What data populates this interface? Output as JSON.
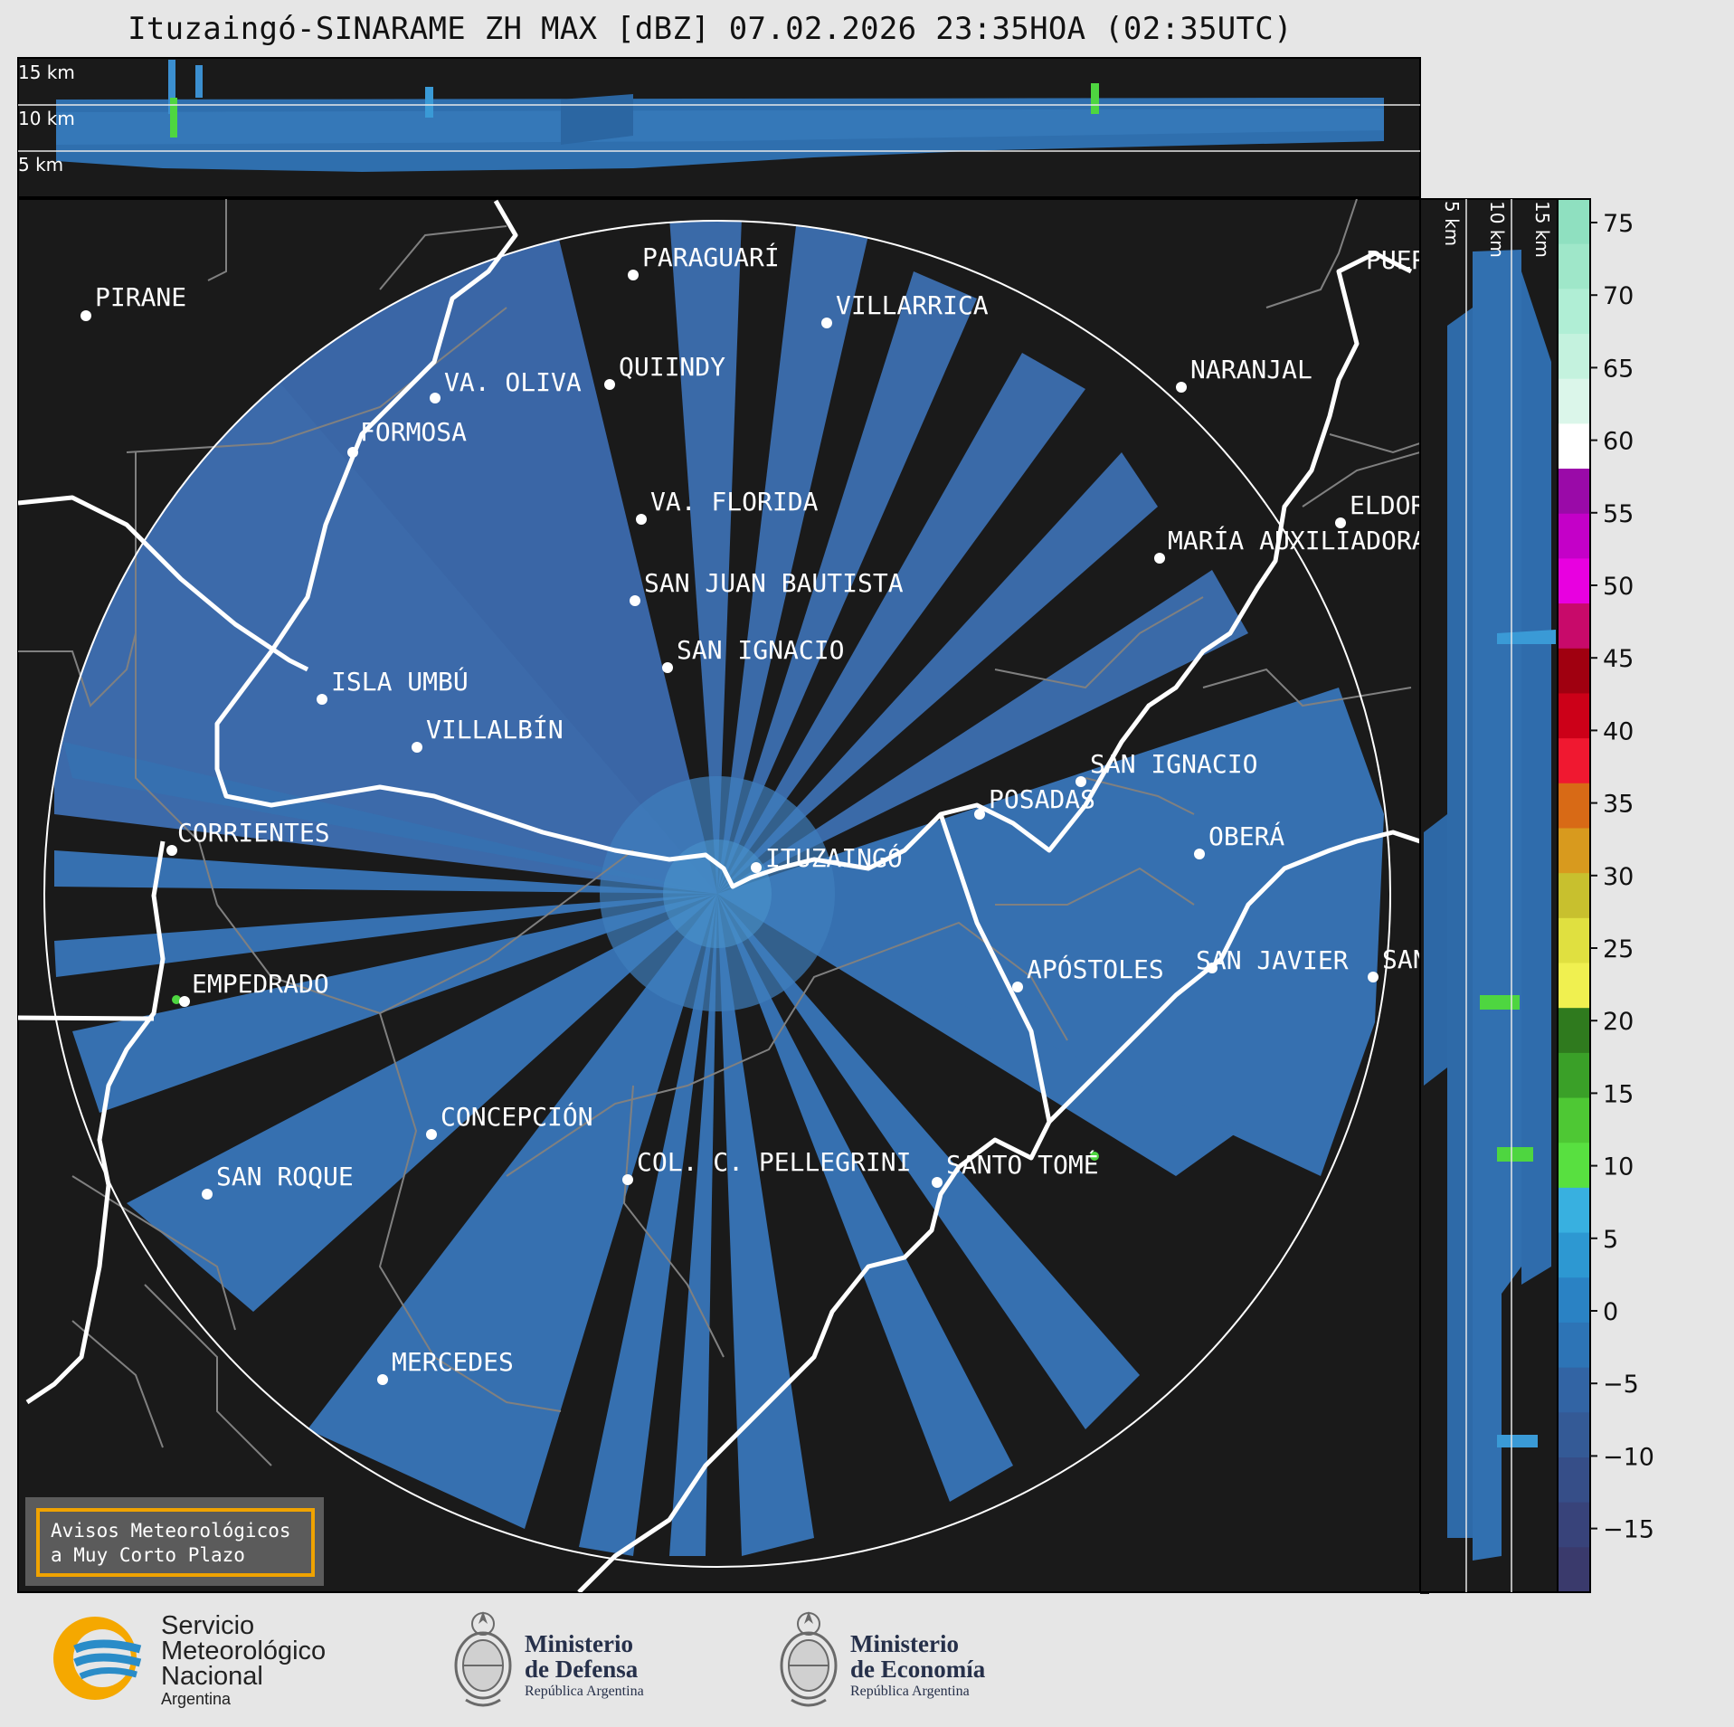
{
  "title": "Ituzaingó-SINARAME ZH MAX [dBZ] 07.02.2026 23:35HOA (02:35UTC)",
  "top_panel": {
    "altitude_labels": [
      "15 km",
      "10 km",
      "5 km"
    ]
  },
  "right_panel": {
    "altitude_labels": [
      "5 km",
      "10 km",
      "15 km"
    ]
  },
  "map": {
    "center_label": "ITUZAINGÓ",
    "places": [
      "PIRANE",
      "PARAGUARÍ",
      "VILLARRICA",
      "QUIINDY",
      "VA. OLIVA",
      "FORMOSA",
      "NARANJAL",
      "VA. FLORIDA",
      "SAN JUAN BAUTISTA",
      "MARÍA AUXILIADORA",
      "ELDORADO",
      "SAN IGNACIO",
      "ISLA UMBÚ",
      "VILLALBÍN",
      "SAN IGNACIO",
      "POSADAS",
      "OBERÁ",
      "CORRIENTES",
      "ITUZAINGÓ",
      "EMPEDRADO",
      "APÓSTOLES",
      "SAN JAVIER",
      "SAN",
      "CONCEPCIÓN",
      "SAN ROQUE",
      "COL. C. PELLEGRINI",
      "SANTO TOMÉ",
      "MERCEDES",
      "PUERTO"
    ]
  },
  "colorbar": {
    "unit": "dBZ",
    "ticks": [
      "75",
      "70",
      "65",
      "60",
      "55",
      "50",
      "45",
      "40",
      "35",
      "30",
      "25",
      "20",
      "15",
      "10",
      "5",
      "0",
      "−5",
      "−10",
      "−15"
    ],
    "colors": [
      "#8fe0c0",
      "#9fe7c9",
      "#b0eed5",
      "#c4f2de",
      "#dbf6ea",
      "#ffffff",
      "#9a0aa8",
      "#c400c8",
      "#e800e0",
      "#c80a6a",
      "#a00010",
      "#cc0018",
      "#f01830",
      "#d86a16",
      "#d89a1e",
      "#c8c02e",
      "#e0e040",
      "#f0f050",
      "#2f7a1e",
      "#3aa028",
      "#4ec834",
      "#58e040",
      "#38b0e0",
      "#2d98d2",
      "#2a82c4",
      "#2d74b6",
      "#3264a4",
      "#345a96",
      "#364e88",
      "#38437a",
      "#3a3a6c"
    ]
  },
  "info_box": {
    "line1": "Avisos Meteorológicos",
    "line2": "a Muy Corto Plazo"
  },
  "logos": {
    "smn": {
      "line1": "Servicio",
      "line2": "Meteorológico",
      "line3": "Nacional",
      "line4": "Argentina"
    },
    "defensa": {
      "line1": "Ministerio",
      "line2": "de Defensa",
      "line3": "República Argentina"
    },
    "economia": {
      "line1": "Ministerio",
      "line2": "de Economía",
      "line3": "República Argentina"
    }
  }
}
